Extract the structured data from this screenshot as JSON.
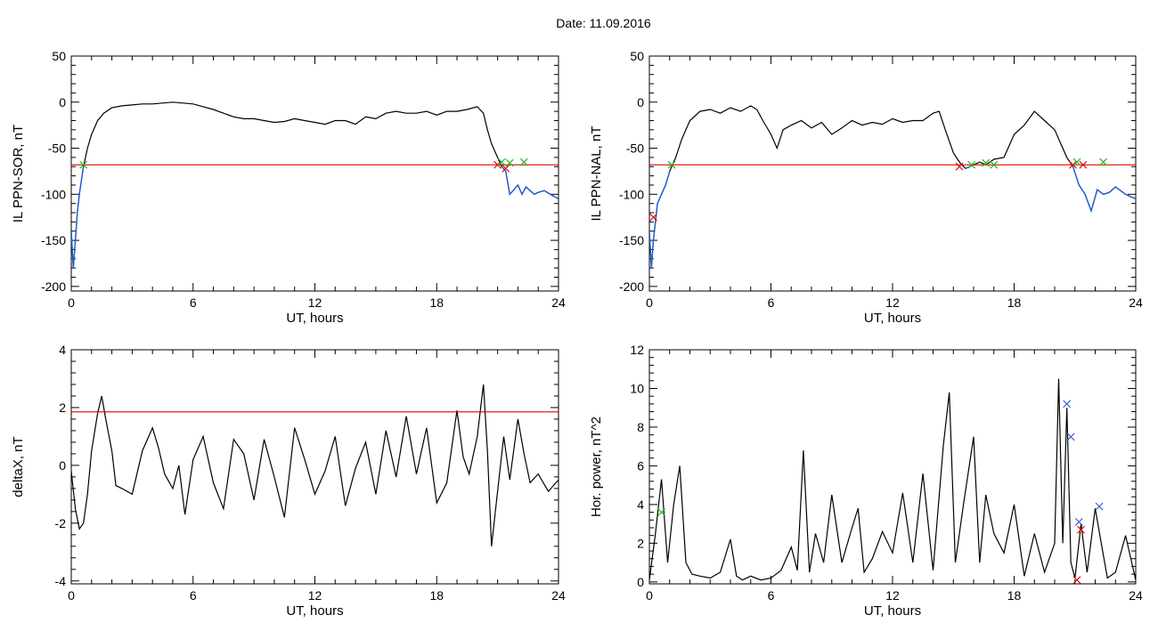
{
  "page": {
    "title": "Date:  11.09.2016"
  },
  "colors": {
    "trace": "#000000",
    "threshold": "#e00000",
    "below": "#1f5fd0",
    "cross_green": "#22bb22",
    "cross_red": "#dd1111",
    "cross_blue": "#3a5fd8"
  },
  "chart_data": [
    {
      "type": "line",
      "xlabel": "UT, hours",
      "ylabel": "IL PPN-SOR, nT",
      "xlim": [
        0,
        24
      ],
      "ylim": [
        -205,
        50
      ],
      "xticks": [
        0,
        6,
        12,
        18,
        24
      ],
      "yticks": [
        50,
        0,
        -50,
        -100,
        -150,
        -200
      ],
      "threshold": -68,
      "series": [
        {
          "x": [
            0,
            0.1,
            0.2,
            0.3,
            0.4,
            0.5,
            0.6,
            0.8,
            1.0,
            1.3,
            1.6,
            2.0,
            2.5,
            3.0,
            3.5,
            4.0,
            4.5,
            5.0,
            5.5,
            6.0,
            6.5,
            7.0,
            7.5,
            8.0,
            8.5,
            9.0,
            9.5,
            10.0,
            10.5,
            11.0,
            11.5,
            12.0,
            12.5,
            13.0,
            13.5,
            14.0,
            14.5,
            15.0,
            15.5,
            16.0,
            16.5,
            17.0,
            17.5,
            18.0,
            18.5,
            19.0,
            19.5,
            20.0,
            20.3,
            20.5,
            20.7,
            20.9,
            21.0,
            21.2,
            21.4,
            21.6,
            21.8,
            22.0,
            22.2,
            22.4,
            22.6,
            22.8,
            23.0,
            23.3,
            23.6,
            24.0
          ],
          "y": [
            -140,
            -180,
            -150,
            -120,
            -100,
            -85,
            -70,
            -50,
            -35,
            -20,
            -12,
            -6,
            -4,
            -3,
            -2,
            -2,
            -1,
            0,
            -1,
            -2,
            -5,
            -8,
            -12,
            -16,
            -18,
            -18,
            -20,
            -22,
            -21,
            -18,
            -20,
            -22,
            -24,
            -20,
            -20,
            -24,
            -16,
            -18,
            -12,
            -10,
            -12,
            -12,
            -10,
            -14,
            -10,
            -10,
            -8,
            -5,
            -12,
            -30,
            -45,
            -55,
            -60,
            -70,
            -75,
            -100,
            -95,
            -90,
            -100,
            -92,
            -96,
            -100,
            -98,
            -96,
            -100,
            -105
          ]
        }
      ],
      "crosses": [
        {
          "x": 0.6,
          "y": -68,
          "color": "green"
        },
        {
          "x": 21.0,
          "y": -68,
          "color": "red"
        },
        {
          "x": 21.2,
          "y": -65,
          "color": "green"
        },
        {
          "x": 21.4,
          "y": -72,
          "color": "red"
        },
        {
          "x": 21.6,
          "y": -66,
          "color": "green"
        },
        {
          "x": 22.3,
          "y": -65,
          "color": "green"
        }
      ]
    },
    {
      "type": "line",
      "xlabel": "UT, hours",
      "ylabel": "IL PPN-NAL, nT",
      "xlim": [
        0,
        24
      ],
      "ylim": [
        -205,
        50
      ],
      "xticks": [
        0,
        6,
        12,
        18,
        24
      ],
      "yticks": [
        50,
        0,
        -50,
        -100,
        -150,
        -200
      ],
      "threshold": -68,
      "series": [
        {
          "x": [
            0,
            0.1,
            0.2,
            0.4,
            0.6,
            0.8,
            1.0,
            1.3,
            1.6,
            2.0,
            2.5,
            3.0,
            3.5,
            4.0,
            4.5,
            5.0,
            5.3,
            5.6,
            6.0,
            6.3,
            6.6,
            7.0,
            7.5,
            8.0,
            8.5,
            9.0,
            9.5,
            10.0,
            10.5,
            11.0,
            11.5,
            12.0,
            12.5,
            13.0,
            13.5,
            14.0,
            14.3,
            14.6,
            15.0,
            15.3,
            15.6,
            16.0,
            16.3,
            16.6,
            17.0,
            17.5,
            18.0,
            18.5,
            19.0,
            19.5,
            20.0,
            20.3,
            20.6,
            20.9,
            21.2,
            21.5,
            21.8,
            22.1,
            22.4,
            22.7,
            23.0,
            23.5,
            24.0
          ],
          "y": [
            -140,
            -180,
            -150,
            -110,
            -100,
            -90,
            -75,
            -60,
            -40,
            -20,
            -10,
            -8,
            -12,
            -6,
            -10,
            -4,
            -8,
            -20,
            -35,
            -50,
            -30,
            -25,
            -20,
            -28,
            -22,
            -35,
            -28,
            -20,
            -25,
            -22,
            -24,
            -18,
            -22,
            -20,
            -20,
            -12,
            -10,
            -30,
            -55,
            -65,
            -72,
            -68,
            -65,
            -68,
            -62,
            -60,
            -35,
            -25,
            -10,
            -20,
            -30,
            -45,
            -60,
            -70,
            -90,
            -100,
            -118,
            -95,
            -100,
            -98,
            -92,
            -100,
            -105
          ]
        }
      ],
      "crosses": [
        {
          "x": 0.2,
          "y": -125,
          "color": "red"
        },
        {
          "x": 1.1,
          "y": -68,
          "color": "green"
        },
        {
          "x": 15.3,
          "y": -70,
          "color": "red"
        },
        {
          "x": 15.9,
          "y": -68,
          "color": "green"
        },
        {
          "x": 16.6,
          "y": -66,
          "color": "green"
        },
        {
          "x": 17.0,
          "y": -68,
          "color": "green"
        },
        {
          "x": 20.9,
          "y": -68,
          "color": "red"
        },
        {
          "x": 21.1,
          "y": -65,
          "color": "green"
        },
        {
          "x": 21.4,
          "y": -68,
          "color": "red"
        },
        {
          "x": 22.4,
          "y": -65,
          "color": "green"
        }
      ]
    },
    {
      "type": "line",
      "xlabel": "UT, hours",
      "ylabel": "deltaX, nT",
      "xlim": [
        0,
        24
      ],
      "ylim": [
        -4.1,
        4
      ],
      "xticks": [
        0,
        6,
        12,
        18,
        24
      ],
      "yticks": [
        4,
        2,
        0,
        -2,
        -4
      ],
      "threshold": 1.85,
      "series": [
        {
          "x": [
            0,
            0.2,
            0.4,
            0.6,
            0.8,
            1.0,
            1.3,
            1.5,
            1.7,
            2.0,
            2.2,
            2.5,
            3.0,
            3.5,
            4.0,
            4.3,
            4.6,
            5.0,
            5.3,
            5.6,
            6.0,
            6.5,
            7.0,
            7.5,
            8.0,
            8.5,
            9.0,
            9.5,
            10.0,
            10.5,
            11.0,
            11.5,
            12.0,
            12.5,
            13.0,
            13.5,
            14.0,
            14.5,
            15.0,
            15.5,
            16.0,
            16.5,
            17.0,
            17.5,
            18.0,
            18.5,
            19.0,
            19.3,
            19.6,
            20.0,
            20.3,
            20.5,
            20.7,
            21.0,
            21.3,
            21.6,
            22.0,
            22.3,
            22.6,
            23.0,
            23.5,
            24.0
          ],
          "y": [
            -0.2,
            -1.5,
            -2.2,
            -2.0,
            -1.0,
            0.5,
            1.8,
            2.4,
            1.6,
            0.5,
            -0.7,
            -0.8,
            -1.0,
            0.5,
            1.3,
            0.6,
            -0.3,
            -0.8,
            0.0,
            -1.7,
            0.2,
            1.0,
            -0.6,
            -1.5,
            0.9,
            0.4,
            -1.2,
            0.9,
            -0.4,
            -1.8,
            1.3,
            0.2,
            -1.0,
            -0.2,
            1.0,
            -1.4,
            -0.1,
            0.8,
            -1.0,
            1.2,
            -0.4,
            1.7,
            -0.3,
            1.3,
            -1.3,
            -0.6,
            1.9,
            0.3,
            -0.3,
            1.0,
            2.8,
            0.5,
            -2.8,
            -0.9,
            1.0,
            -0.5,
            1.6,
            0.4,
            -0.6,
            -0.3,
            -0.9,
            -0.5
          ]
        }
      ],
      "crosses": []
    },
    {
      "type": "line",
      "xlabel": "UT, hours",
      "ylabel": "Hor. power, nT^2",
      "xlim": [
        0,
        24
      ],
      "ylim": [
        -0.1,
        12
      ],
      "xticks": [
        0,
        6,
        12,
        18,
        24
      ],
      "yticks": [
        12,
        10,
        8,
        6,
        4,
        2,
        0
      ],
      "series": [
        {
          "x": [
            0,
            0.3,
            0.6,
            0.9,
            1.2,
            1.5,
            1.8,
            2.1,
            2.5,
            3.0,
            3.5,
            4.0,
            4.3,
            4.6,
            5.0,
            5.5,
            6.0,
            6.5,
            7.0,
            7.3,
            7.6,
            7.9,
            8.2,
            8.6,
            9.0,
            9.5,
            10.0,
            10.3,
            10.6,
            11.0,
            11.5,
            12.0,
            12.5,
            13.0,
            13.5,
            14.0,
            14.5,
            14.8,
            15.1,
            15.5,
            16.0,
            16.3,
            16.6,
            17.0,
            17.5,
            18.0,
            18.5,
            19.0,
            19.5,
            20.0,
            20.2,
            20.4,
            20.6,
            20.8,
            21.0,
            21.3,
            21.6,
            22.0,
            22.3,
            22.6,
            23.0,
            23.5,
            24.0
          ],
          "y": [
            0.1,
            2.5,
            5.3,
            1.0,
            4.0,
            6.0,
            1.0,
            0.4,
            0.3,
            0.2,
            0.5,
            2.2,
            0.3,
            0.1,
            0.3,
            0.1,
            0.2,
            0.6,
            1.8,
            0.6,
            6.8,
            0.5,
            2.5,
            1.0,
            4.5,
            1.0,
            2.8,
            3.8,
            0.5,
            1.2,
            2.6,
            1.5,
            4.6,
            1.0,
            5.6,
            0.6,
            7.0,
            9.8,
            1.0,
            4.0,
            7.5,
            1.0,
            4.5,
            2.5,
            1.5,
            4.0,
            0.3,
            2.5,
            0.5,
            2.0,
            10.5,
            2.0,
            9.0,
            1.0,
            0.2,
            3.0,
            0.5,
            3.8,
            2.0,
            0.2,
            0.5,
            2.4,
            0.1
          ]
        }
      ],
      "crosses": [
        {
          "x": 0.6,
          "y": 3.6,
          "color": "green"
        },
        {
          "x": 20.6,
          "y": 9.2,
          "color": "blue"
        },
        {
          "x": 20.8,
          "y": 7.5,
          "color": "blue"
        },
        {
          "x": 21.2,
          "y": 3.1,
          "color": "blue"
        },
        {
          "x": 21.3,
          "y": 2.7,
          "color": "red"
        },
        {
          "x": 21.1,
          "y": 0.1,
          "color": "red"
        },
        {
          "x": 22.2,
          "y": 3.9,
          "color": "blue"
        }
      ]
    }
  ]
}
